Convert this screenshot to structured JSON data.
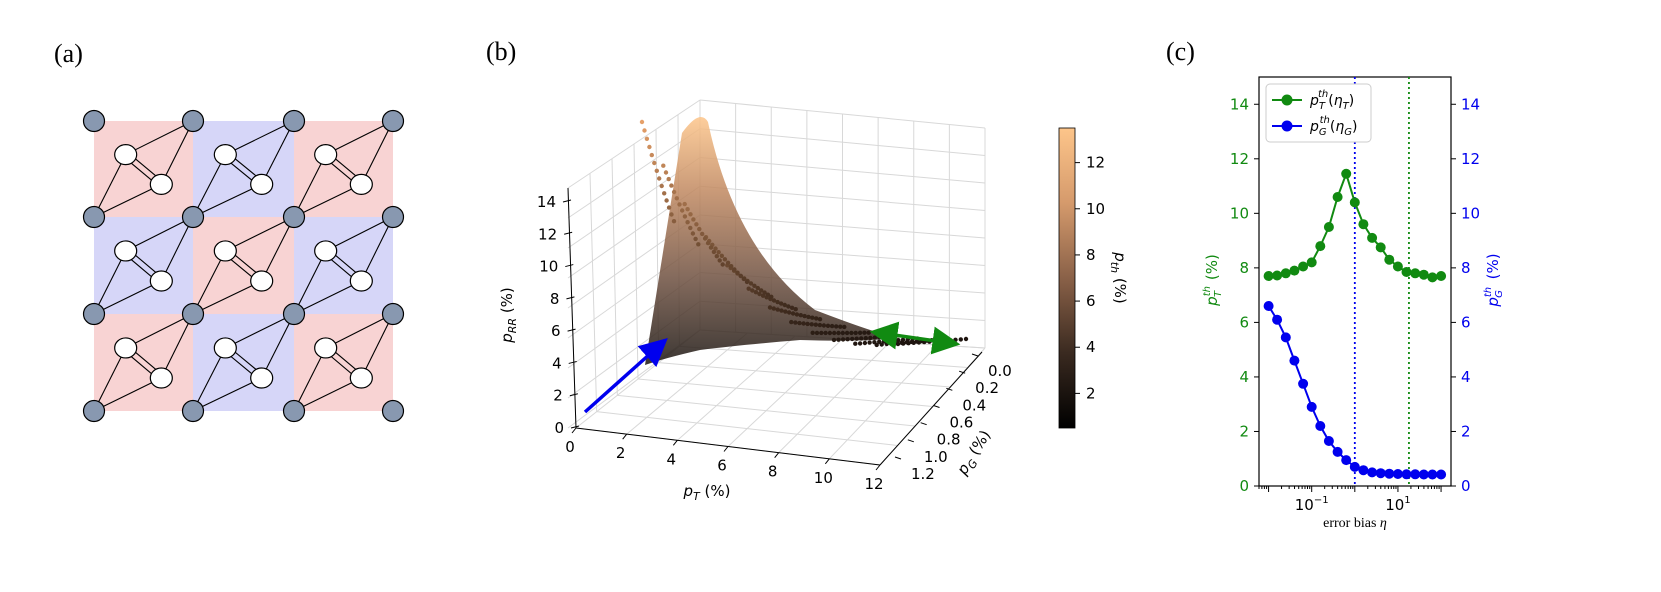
{
  "panels": {
    "a": {
      "label": "(a)"
    },
    "b": {
      "label": "(b)"
    },
    "c": {
      "label": "(c)"
    }
  },
  "colors": {
    "tile_red": "#f8d3d3",
    "tile_blue": "#d6d6f8",
    "node_fill": "#8898b0",
    "green": "#118a11",
    "blue": "#0000ee",
    "surface_high": "#fdc58a",
    "surface_low": "#000000"
  },
  "chart_data": [
    {
      "type": "diagram",
      "panel": "(a)",
      "description_nodes": "4x4 lattice of grey nodes with elliptical pairs on a checkerboard of red and blue tiles"
    },
    {
      "type": "surface3d",
      "panel": "(b)",
      "xlabel": "p_T (%)",
      "ylabel": "p_G (%)",
      "zlabel": "p_RR (%)",
      "x_ticks": [
        "0",
        "2",
        "4",
        "6",
        "8",
        "10",
        "12"
      ],
      "y_ticks": [
        "0.0",
        "0.2",
        "0.4",
        "0.6",
        "0.8",
        "1.0",
        "1.2"
      ],
      "z_ticks": [
        "0",
        "2",
        "4",
        "6",
        "8",
        "10",
        "12",
        "14"
      ],
      "xlim": [
        0,
        12
      ],
      "ylim": [
        0,
        1.3
      ],
      "zlim": [
        0,
        14
      ],
      "colorbar": {
        "label": "p_th (%)",
        "ticks": [
          "2",
          "4",
          "6",
          "8",
          "10",
          "12"
        ],
        "range": [
          0.5,
          13.5
        ]
      },
      "arrows": [
        {
          "color": "blue",
          "direction": "along p_T axis"
        },
        {
          "color": "green",
          "direction": "along p_G axis",
          "double_headed": true
        }
      ]
    },
    {
      "type": "line",
      "panel": "(c)",
      "xlabel": "error bias η",
      "x_scale": "log",
      "x_ticks": [
        "10^-1",
        "10^1"
      ],
      "y_left_label": "p_T^th (%)",
      "y_right_label": "p_G^th (%)",
      "ylim": [
        0,
        15
      ],
      "y_ticks": [
        "0",
        "2",
        "4",
        "6",
        "8",
        "10",
        "12",
        "14"
      ],
      "series": [
        {
          "name": "p_T^th(η_T)",
          "color": "green",
          "x": [
            0.01,
            0.0158,
            0.0251,
            0.0398,
            0.0631,
            0.1,
            0.158,
            0.251,
            0.398,
            0.631,
            1.0,
            1.58,
            2.51,
            3.98,
            6.31,
            10,
            15.8,
            25.1,
            39.8,
            63.1,
            100
          ],
          "values": [
            7.7,
            7.72,
            7.8,
            7.9,
            8.05,
            8.2,
            8.8,
            9.5,
            10.6,
            11.45,
            10.4,
            9.6,
            9.1,
            8.75,
            8.3,
            8.05,
            7.85,
            7.8,
            7.75,
            7.65,
            7.7
          ]
        },
        {
          "name": "p_G^th(η_G)",
          "color": "blue",
          "x": [
            0.01,
            0.0158,
            0.0251,
            0.0398,
            0.0631,
            0.1,
            0.158,
            0.251,
            0.398,
            0.631,
            1.0,
            1.58,
            2.51,
            3.98,
            6.31,
            10,
            15.8,
            25.1,
            39.8,
            63.1,
            100
          ],
          "values": [
            6.6,
            6.1,
            5.45,
            4.6,
            3.75,
            2.9,
            2.2,
            1.65,
            1.25,
            0.95,
            0.7,
            0.58,
            0.5,
            0.47,
            0.45,
            0.44,
            0.43,
            0.43,
            0.42,
            0.42,
            0.42
          ]
        }
      ],
      "vlines": [
        {
          "x": 1.0,
          "color": "blue",
          "style": "dotted"
        },
        {
          "x": 18.0,
          "color": "green",
          "style": "dotted"
        }
      ]
    }
  ]
}
